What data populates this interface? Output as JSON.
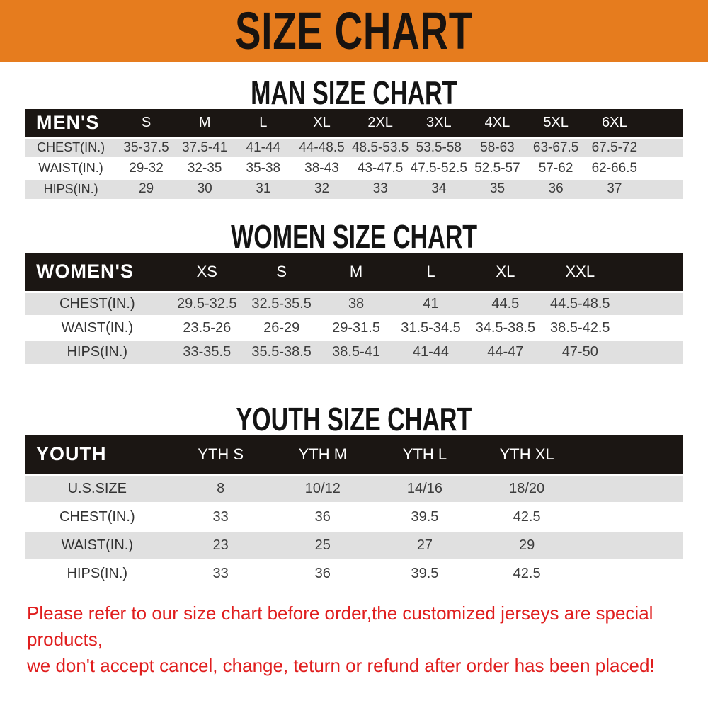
{
  "banner": {
    "title": "SIZE CHART",
    "background_color": "#e67c1e",
    "text_color": "#181310"
  },
  "sections": [
    {
      "heading": "MAN SIZE CHART"
    },
    {
      "heading": "WOMEN SIZE CHART"
    },
    {
      "heading": "YOUTH SIZE CHART"
    }
  ],
  "tables": {
    "men": {
      "label": "MEN'S",
      "columns": [
        "S",
        "M",
        "L",
        "XL",
        "2XL",
        "3XL",
        "4XL",
        "5XL",
        "6XL"
      ],
      "rows": [
        {
          "label": "CHEST(IN.)",
          "values": [
            "35-37.5",
            "37.5-41",
            "41-44",
            "44-48.5",
            "48.5-53.5",
            "53.5-58",
            "58-63",
            "63-67.5",
            "67.5-72"
          ]
        },
        {
          "label": "WAIST(IN.)",
          "values": [
            "29-32",
            "32-35",
            "35-38",
            "38-43",
            "43-47.5",
            "47.5-52.5",
            "52.5-57",
            "57-62",
            "62-66.5"
          ]
        },
        {
          "label": "HIPS(IN.)",
          "values": [
            "29",
            "30",
            "31",
            "32",
            "33",
            "34",
            "35",
            "36",
            "37"
          ]
        }
      ]
    },
    "women": {
      "label": "WOMEN'S",
      "columns": [
        "XS",
        "S",
        "M",
        "L",
        "XL",
        "XXL"
      ],
      "rows": [
        {
          "label": "CHEST(IN.)",
          "values": [
            "29.5-32.5",
            "32.5-35.5",
            "38",
            "41",
            "44.5",
            "44.5-48.5"
          ]
        },
        {
          "label": "WAIST(IN.)",
          "values": [
            "23.5-26",
            "26-29",
            "29-31.5",
            "31.5-34.5",
            "34.5-38.5",
            "38.5-42.5"
          ]
        },
        {
          "label": "HIPS(IN.)",
          "values": [
            "33-35.5",
            "35.5-38.5",
            "38.5-41",
            "41-44",
            "44-47",
            "47-50"
          ]
        }
      ]
    },
    "youth": {
      "label": "YOUTH",
      "columns": [
        "YTH S",
        "YTH M",
        "YTH L",
        "YTH XL"
      ],
      "rows": [
        {
          "label": "U.S.SIZE",
          "values": [
            "8",
            "10/12",
            "14/16",
            "18/20"
          ]
        },
        {
          "label": "CHEST(IN.)",
          "values": [
            "33",
            "36",
            "39.5",
            "42.5"
          ]
        },
        {
          "label": "WAIST(IN.)",
          "values": [
            "23",
            "25",
            "27",
            "29"
          ]
        },
        {
          "label": "HIPS(IN.)",
          "values": [
            "33",
            "36",
            "39.5",
            "42.5"
          ]
        }
      ]
    }
  },
  "disclaimer": {
    "line1": "Please refer to our size chart before order,the customized jerseys are special products,",
    "line2": "we don't accept cancel, change, teturn or refund after order has been placed!",
    "text_color": "#e01e1e"
  },
  "colors": {
    "banner_orange": "#e67c1e",
    "table_header_black": "#1b1613",
    "row_stripe_gray": "#e0e0e0",
    "cell_text": "#3c3c3c",
    "disclaimer_red": "#e01e1e"
  }
}
